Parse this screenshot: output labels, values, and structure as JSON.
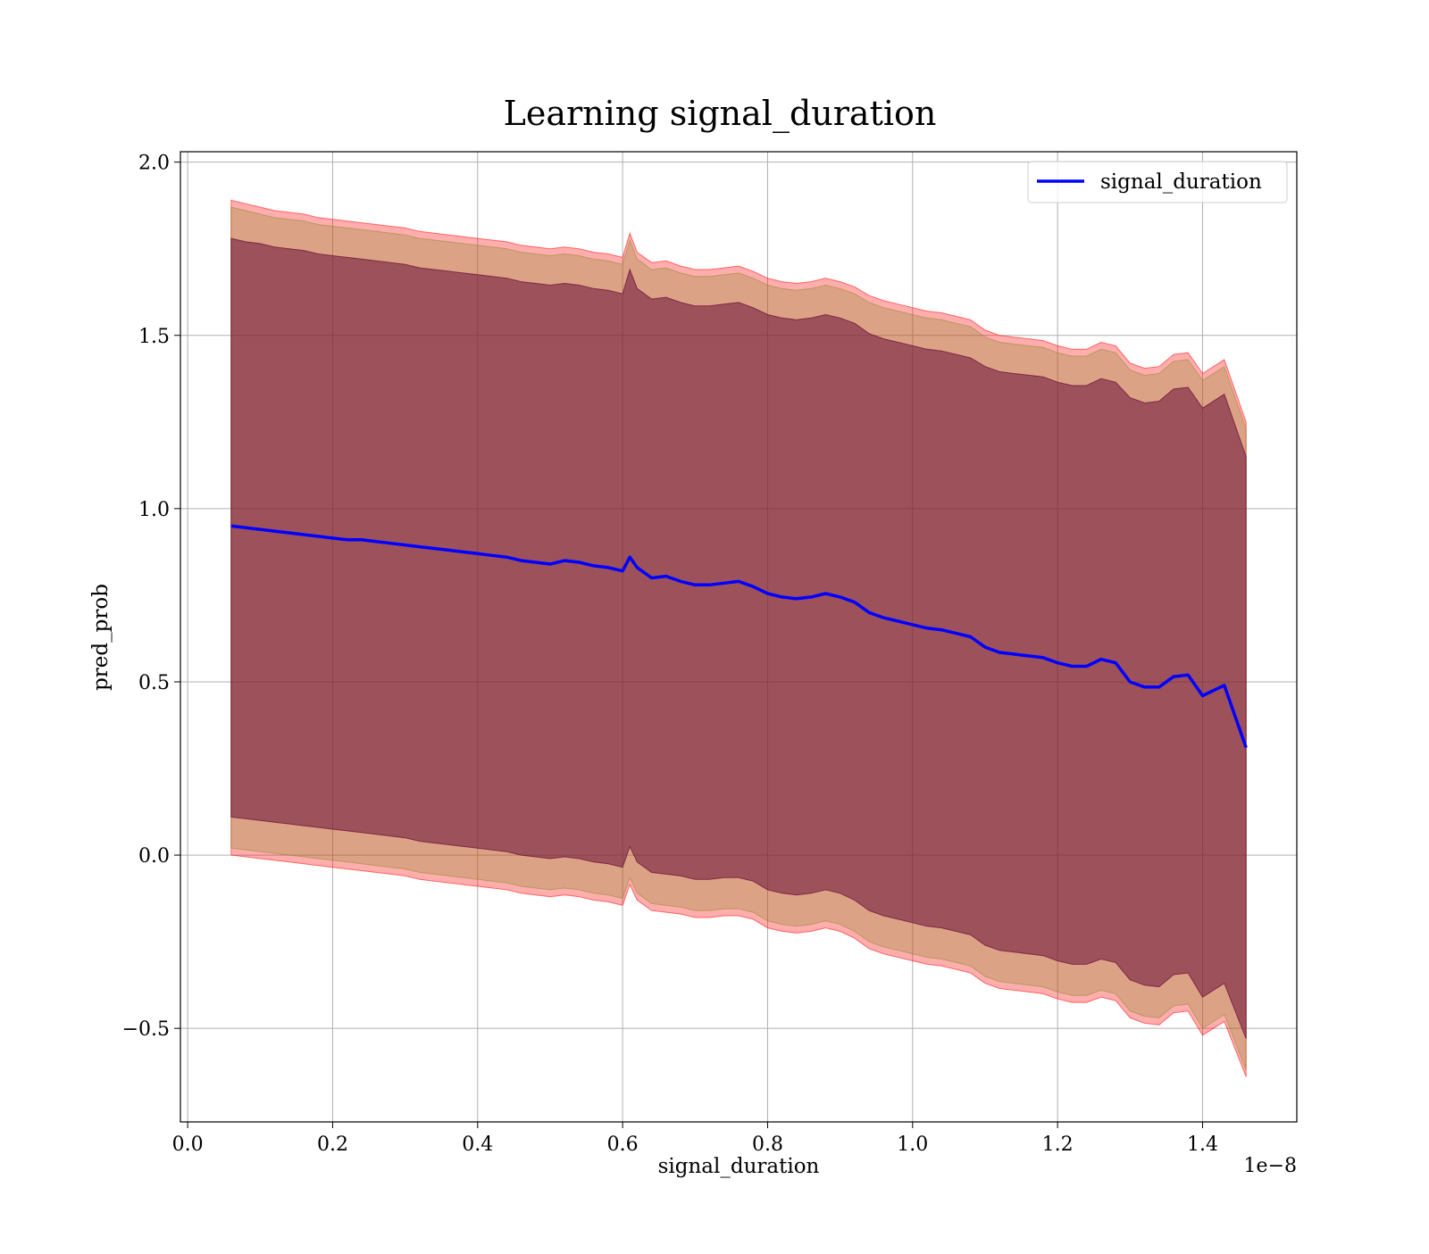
{
  "chart_data": {
    "type": "line",
    "title": "Learning signal_duration",
    "xlabel": "signal_duration",
    "ylabel": "pred_prob",
    "x_offset_label": "1e−8",
    "xlim": [
      -0.01,
      1.53
    ],
    "ylim": [
      -0.77,
      2.03
    ],
    "x_ticks": [
      0.0,
      0.2,
      0.4,
      0.6,
      0.8,
      1.0,
      1.2,
      1.4
    ],
    "x_tick_labels": [
      "0.0",
      "0.2",
      "0.4",
      "0.6",
      "0.8",
      "1.0",
      "1.2",
      "1.4"
    ],
    "y_ticks": [
      -0.5,
      0.0,
      0.5,
      1.0,
      1.5,
      2.0
    ],
    "y_tick_labels": [
      "−0.5",
      "0.0",
      "0.5",
      "1.0",
      "1.5",
      "2.0"
    ],
    "grid": true,
    "legend": {
      "position": "top-right",
      "entries": [
        "signal_duration"
      ]
    },
    "x": [
      0.06,
      0.08,
      0.1,
      0.12,
      0.14,
      0.16,
      0.18,
      0.2,
      0.22,
      0.24,
      0.26,
      0.28,
      0.3,
      0.32,
      0.34,
      0.36,
      0.38,
      0.4,
      0.42,
      0.44,
      0.46,
      0.48,
      0.5,
      0.52,
      0.54,
      0.56,
      0.58,
      0.6,
      0.61,
      0.62,
      0.64,
      0.66,
      0.68,
      0.7,
      0.72,
      0.74,
      0.76,
      0.78,
      0.8,
      0.82,
      0.84,
      0.86,
      0.88,
      0.9,
      0.92,
      0.94,
      0.96,
      0.98,
      1.0,
      1.02,
      1.04,
      1.06,
      1.08,
      1.1,
      1.12,
      1.14,
      1.16,
      1.18,
      1.2,
      1.22,
      1.24,
      1.26,
      1.28,
      1.3,
      1.32,
      1.34,
      1.36,
      1.38,
      1.4,
      1.43,
      1.46
    ],
    "series": [
      {
        "name": "signal_duration",
        "color": "#0000ff",
        "values": [
          0.95,
          0.945,
          0.94,
          0.935,
          0.93,
          0.925,
          0.92,
          0.915,
          0.91,
          0.91,
          0.905,
          0.9,
          0.895,
          0.89,
          0.885,
          0.88,
          0.875,
          0.87,
          0.865,
          0.86,
          0.85,
          0.845,
          0.84,
          0.85,
          0.845,
          0.835,
          0.83,
          0.82,
          0.86,
          0.83,
          0.8,
          0.805,
          0.79,
          0.78,
          0.78,
          0.785,
          0.79,
          0.775,
          0.755,
          0.745,
          0.74,
          0.745,
          0.755,
          0.745,
          0.73,
          0.7,
          0.685,
          0.675,
          0.665,
          0.655,
          0.65,
          0.64,
          0.63,
          0.6,
          0.585,
          0.58,
          0.575,
          0.57,
          0.555,
          0.545,
          0.545,
          0.565,
          0.555,
          0.5,
          0.485,
          0.485,
          0.515,
          0.52,
          0.46,
          0.49,
          0.31
        ]
      }
    ],
    "bands": [
      {
        "color": "#ff0000",
        "opacity": 0.32,
        "upper": [
          1.89,
          1.88,
          1.87,
          1.86,
          1.855,
          1.85,
          1.84,
          1.835,
          1.83,
          1.825,
          1.82,
          1.815,
          1.81,
          1.8,
          1.795,
          1.79,
          1.785,
          1.78,
          1.775,
          1.77,
          1.76,
          1.755,
          1.75,
          1.755,
          1.75,
          1.74,
          1.735,
          1.725,
          1.795,
          1.74,
          1.71,
          1.715,
          1.7,
          1.69,
          1.69,
          1.695,
          1.7,
          1.685,
          1.665,
          1.655,
          1.65,
          1.655,
          1.665,
          1.655,
          1.64,
          1.615,
          1.6,
          1.59,
          1.58,
          1.57,
          1.565,
          1.555,
          1.545,
          1.515,
          1.5,
          1.495,
          1.49,
          1.485,
          1.47,
          1.46,
          1.46,
          1.48,
          1.47,
          1.42,
          1.405,
          1.41,
          1.445,
          1.45,
          1.39,
          1.43,
          1.25
        ],
        "lower": [
          0.0,
          -0.005,
          -0.01,
          -0.015,
          -0.02,
          -0.025,
          -0.03,
          -0.035,
          -0.04,
          -0.045,
          -0.05,
          -0.055,
          -0.06,
          -0.07,
          -0.075,
          -0.08,
          -0.085,
          -0.09,
          -0.095,
          -0.1,
          -0.11,
          -0.115,
          -0.12,
          -0.115,
          -0.12,
          -0.13,
          -0.135,
          -0.145,
          -0.085,
          -0.13,
          -0.16,
          -0.165,
          -0.17,
          -0.18,
          -0.18,
          -0.175,
          -0.175,
          -0.185,
          -0.21,
          -0.22,
          -0.225,
          -0.22,
          -0.21,
          -0.22,
          -0.24,
          -0.27,
          -0.285,
          -0.295,
          -0.305,
          -0.315,
          -0.32,
          -0.33,
          -0.34,
          -0.37,
          -0.385,
          -0.39,
          -0.395,
          -0.4,
          -0.415,
          -0.425,
          -0.425,
          -0.41,
          -0.42,
          -0.47,
          -0.485,
          -0.49,
          -0.455,
          -0.45,
          -0.52,
          -0.48,
          -0.64
        ]
      },
      {
        "color": "#8a8a2a",
        "opacity": 0.3,
        "upper": [
          1.87,
          1.86,
          1.85,
          1.84,
          1.835,
          1.83,
          1.82,
          1.815,
          1.81,
          1.805,
          1.8,
          1.795,
          1.79,
          1.78,
          1.775,
          1.77,
          1.765,
          1.76,
          1.755,
          1.75,
          1.74,
          1.735,
          1.73,
          1.735,
          1.73,
          1.72,
          1.715,
          1.705,
          1.775,
          1.72,
          1.69,
          1.695,
          1.68,
          1.67,
          1.67,
          1.675,
          1.68,
          1.665,
          1.645,
          1.635,
          1.63,
          1.635,
          1.645,
          1.635,
          1.62,
          1.595,
          1.58,
          1.57,
          1.56,
          1.55,
          1.545,
          1.535,
          1.525,
          1.495,
          1.48,
          1.475,
          1.47,
          1.465,
          1.45,
          1.44,
          1.44,
          1.46,
          1.45,
          1.4,
          1.385,
          1.39,
          1.425,
          1.43,
          1.37,
          1.41,
          1.23
        ],
        "lower": [
          0.02,
          0.015,
          0.01,
          0.005,
          0.0,
          -0.005,
          -0.01,
          -0.015,
          -0.02,
          -0.025,
          -0.03,
          -0.035,
          -0.04,
          -0.05,
          -0.055,
          -0.06,
          -0.065,
          -0.07,
          -0.075,
          -0.08,
          -0.09,
          -0.095,
          -0.1,
          -0.095,
          -0.1,
          -0.11,
          -0.115,
          -0.125,
          -0.065,
          -0.11,
          -0.14,
          -0.145,
          -0.15,
          -0.16,
          -0.16,
          -0.155,
          -0.155,
          -0.165,
          -0.19,
          -0.2,
          -0.205,
          -0.2,
          -0.19,
          -0.2,
          -0.22,
          -0.25,
          -0.265,
          -0.275,
          -0.285,
          -0.295,
          -0.3,
          -0.31,
          -0.32,
          -0.35,
          -0.365,
          -0.37,
          -0.375,
          -0.38,
          -0.395,
          -0.405,
          -0.405,
          -0.39,
          -0.4,
          -0.45,
          -0.465,
          -0.47,
          -0.435,
          -0.43,
          -0.5,
          -0.46,
          -0.62
        ]
      },
      {
        "color": "#6a1038",
        "opacity": 0.55,
        "upper": [
          1.78,
          1.77,
          1.765,
          1.755,
          1.75,
          1.745,
          1.735,
          1.73,
          1.725,
          1.72,
          1.715,
          1.71,
          1.705,
          1.695,
          1.69,
          1.685,
          1.68,
          1.675,
          1.67,
          1.665,
          1.655,
          1.65,
          1.645,
          1.65,
          1.645,
          1.635,
          1.63,
          1.62,
          1.69,
          1.635,
          1.605,
          1.61,
          1.595,
          1.585,
          1.585,
          1.59,
          1.595,
          1.58,
          1.56,
          1.55,
          1.545,
          1.55,
          1.56,
          1.55,
          1.535,
          1.505,
          1.49,
          1.48,
          1.47,
          1.46,
          1.455,
          1.445,
          1.435,
          1.41,
          1.395,
          1.39,
          1.385,
          1.38,
          1.365,
          1.355,
          1.355,
          1.375,
          1.365,
          1.32,
          1.305,
          1.31,
          1.345,
          1.35,
          1.29,
          1.33,
          1.15
        ],
        "lower": [
          0.11,
          0.105,
          0.1,
          0.095,
          0.09,
          0.085,
          0.08,
          0.075,
          0.07,
          0.065,
          0.06,
          0.055,
          0.05,
          0.04,
          0.035,
          0.03,
          0.025,
          0.02,
          0.015,
          0.01,
          0.0,
          -0.005,
          -0.01,
          -0.005,
          -0.01,
          -0.02,
          -0.025,
          -0.035,
          0.025,
          -0.02,
          -0.05,
          -0.055,
          -0.06,
          -0.07,
          -0.07,
          -0.065,
          -0.065,
          -0.075,
          -0.1,
          -0.11,
          -0.115,
          -0.11,
          -0.1,
          -0.11,
          -0.13,
          -0.16,
          -0.175,
          -0.185,
          -0.195,
          -0.205,
          -0.21,
          -0.22,
          -0.23,
          -0.26,
          -0.275,
          -0.28,
          -0.285,
          -0.29,
          -0.305,
          -0.315,
          -0.315,
          -0.3,
          -0.31,
          -0.36,
          -0.375,
          -0.38,
          -0.345,
          -0.34,
          -0.41,
          -0.37,
          -0.53
        ]
      }
    ]
  }
}
